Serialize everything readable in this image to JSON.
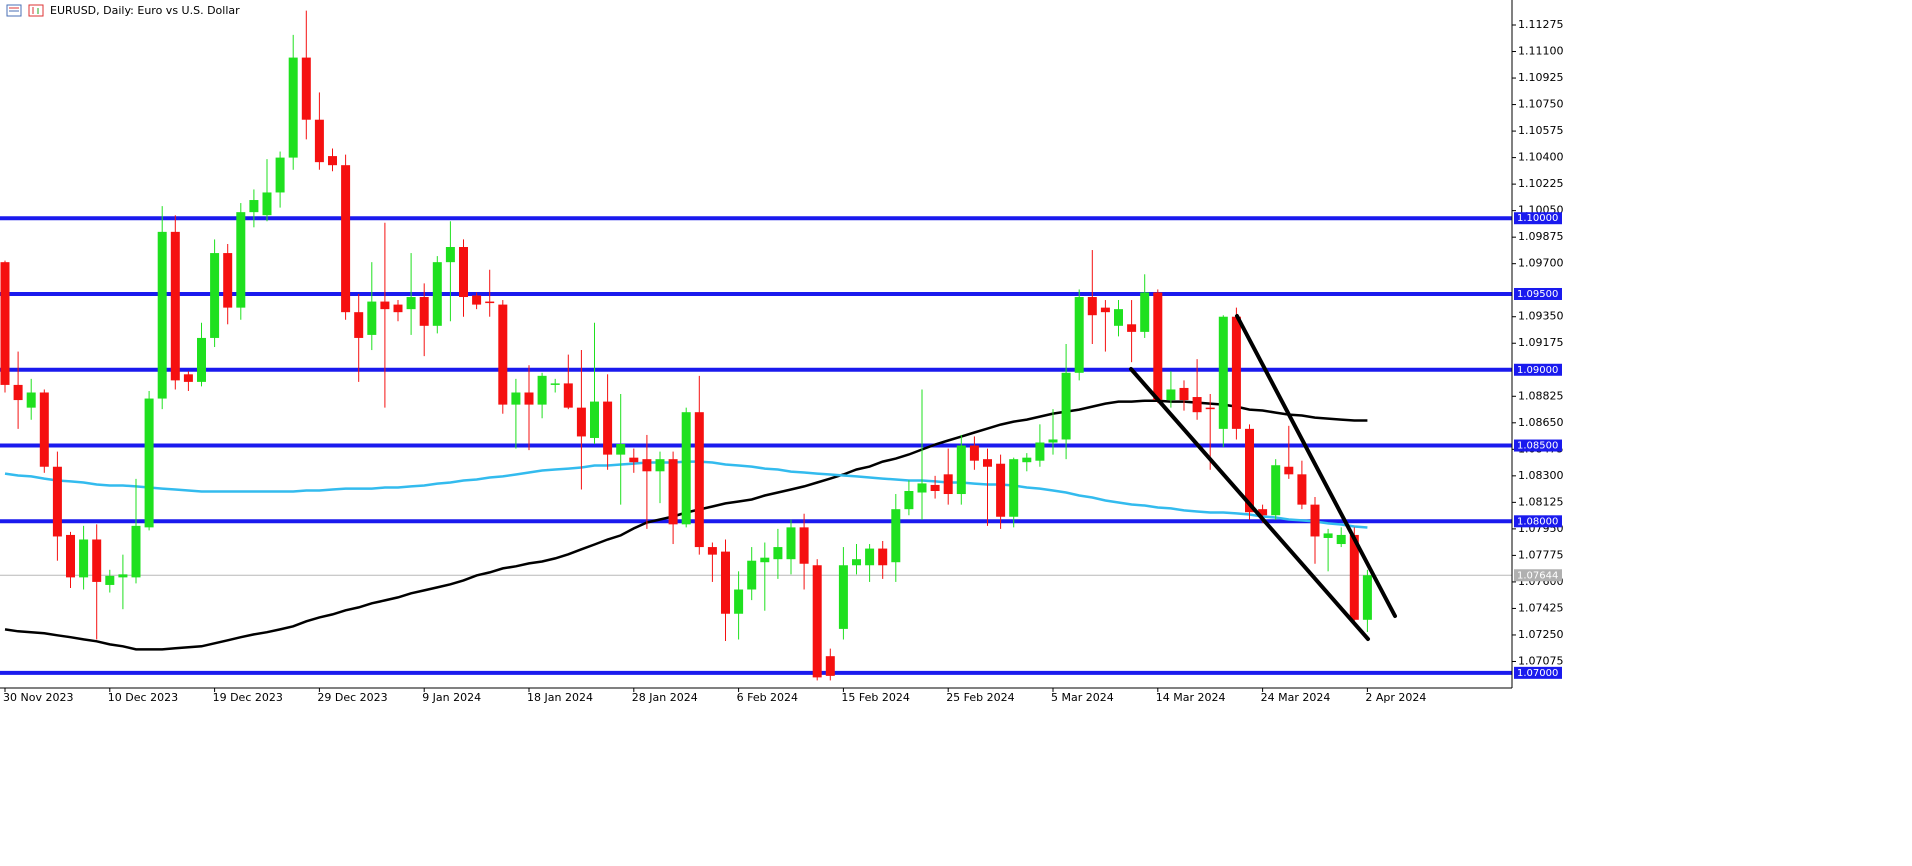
{
  "chart_data": {
    "type": "candlestick",
    "title": "EURUSD, Daily:  Euro vs U.S. Dollar",
    "up_color": "#1fe01f",
    "down_color": "#f51010",
    "ylim": [
      1.069,
      1.1144
    ],
    "yticks": [
      1.11275,
      {
        "value": 1.111,
        "label": "1.11100"
      },
      1.10925,
      {
        "value": 1.1075,
        "label": "1.10750"
      },
      1.10575,
      {
        "value": 1.104,
        "label": "1.10400"
      },
      1.10225,
      {
        "value": 1.1005,
        "label": "1.10050"
      },
      1.09875,
      {
        "value": 1.097,
        "label": "1.09700"
      },
      {
        "value": 1.0935,
        "label": "1.09350"
      },
      1.09175,
      1.08825,
      {
        "value": 1.0865,
        "label": "1.08650"
      },
      1.08475,
      {
        "value": 1.083,
        "label": "1.08300"
      },
      1.08125,
      {
        "value": 1.0795,
        "label": "1.07950"
      },
      1.07775,
      {
        "value": 1.076,
        "label": "1.07600"
      },
      1.07425,
      {
        "value": 1.0725,
        "label": "1.07250"
      },
      1.07075
    ],
    "categories": [
      "30 Nov 2023",
      null,
      null,
      null,
      null,
      null,
      null,
      null,
      "10 Dec 2023",
      null,
      null,
      null,
      null,
      null,
      null,
      null,
      "19 Dec 2023",
      null,
      null,
      null,
      null,
      null,
      null,
      null,
      "29 Dec 2023",
      null,
      null,
      null,
      null,
      null,
      null,
      null,
      "9 Jan 2024",
      null,
      null,
      null,
      null,
      null,
      null,
      null,
      "18 Jan 2024",
      null,
      null,
      null,
      null,
      null,
      null,
      null,
      "28 Jan 2024",
      null,
      null,
      null,
      null,
      null,
      null,
      null,
      "6 Feb 2024",
      null,
      null,
      null,
      null,
      null,
      null,
      null,
      "15 Feb 2024",
      null,
      null,
      null,
      null,
      null,
      null,
      null,
      "25 Feb 2024",
      null,
      null,
      null,
      null,
      null,
      null,
      null,
      "5 Mar 2024",
      null,
      null,
      null,
      null,
      null,
      null,
      null,
      "14 Mar 2024",
      null,
      null,
      null,
      null,
      null,
      null,
      null,
      "24 Mar 2024",
      null,
      null,
      null,
      null,
      null,
      null,
      null,
      "2 Apr 2024"
    ],
    "open": [
      1.0971,
      1.089,
      1.0875,
      1.0885,
      1.0836,
      1.0791,
      1.0763,
      1.0788,
      1.0758,
      1.0763,
      1.0763,
      1.0796,
      1.0881,
      1.0991,
      1.0897,
      1.0892,
      1.0921,
      1.0977,
      1.0941,
      1.1004,
      1.1002,
      1.1017,
      1.104,
      1.1106,
      1.1065,
      1.1041,
      1.1035,
      1.0938,
      1.0923,
      1.0945,
      1.0943,
      1.094,
      1.0948,
      1.0929,
      1.0971,
      1.0981,
      1.0949,
      1.0945,
      1.0943,
      1.0877,
      1.0885,
      1.0877,
      1.089,
      1.0891,
      1.0875,
      1.0855,
      1.0879,
      1.0844,
      1.0842,
      1.0841,
      1.0833,
      1.0841,
      1.0798,
      1.0872,
      1.0783,
      1.078,
      1.0739,
      1.0755,
      1.0773,
      1.0775,
      1.0775,
      1.0796,
      1.0771,
      1.0711,
      1.0729,
      1.0771,
      1.0771,
      1.0782,
      1.0773,
      1.0808,
      1.0819,
      1.0824,
      1.0831,
      1.0818,
      1.085,
      1.0841,
      1.0838,
      1.0803,
      1.0839,
      1.084,
      1.0852,
      1.0854,
      1.0898,
      1.0948,
      1.0941,
      1.0929,
      1.093,
      1.0925,
      1.0951,
      1.088,
      1.0888,
      1.0882,
      1.0875,
      1.0861,
      1.0935,
      1.0861,
      1.0808,
      1.0804,
      1.0836,
      1.0831,
      1.0811,
      1.0789,
      1.0785,
      1.0791,
      1.0735
    ],
    "high": [
      1.0972,
      1.0912,
      1.0894,
      1.0887,
      1.0846,
      1.0793,
      1.0797,
      1.0798,
      1.0768,
      1.0778,
      1.0828,
      1.0886,
      1.1008,
      1.1002,
      1.0899,
      1.0931,
      1.0986,
      1.0983,
      1.101,
      1.1019,
      1.1039,
      1.1044,
      1.1121,
      1.1137,
      1.1083,
      1.1046,
      1.1042,
      1.095,
      1.0971,
      1.0997,
      1.0946,
      1.0977,
      1.0957,
      1.0975,
      1.0998,
      1.0986,
      1.0951,
      1.0966,
      1.0946,
      1.0894,
      1.0903,
      1.0898,
      1.0894,
      1.091,
      1.0913,
      1.0931,
      1.0897,
      1.0884,
      1.0848,
      1.0857,
      1.0846,
      1.0846,
      1.0875,
      1.0896,
      1.0786,
      1.0788,
      1.0767,
      1.0783,
      1.0786,
      1.0795,
      1.0801,
      1.0805,
      1.0775,
      1.0716,
      1.0783,
      1.0785,
      1.0785,
      1.0787,
      1.0818,
      1.0827,
      1.0887,
      1.083,
      1.0848,
      1.0857,
      1.0856,
      1.0848,
      1.0844,
      1.0842,
      1.0845,
      1.0864,
      1.0874,
      1.0917,
      1.0953,
      1.0979,
      1.0946,
      1.0946,
      1.0946,
      1.0963,
      1.0953,
      1.0899,
      1.0893,
      1.0907,
      1.0884,
      1.0936,
      1.0941,
      1.0864,
      1.0811,
      1.0841,
      1.0863,
      1.084,
      1.0816,
      1.0795,
      1.0796,
      1.0796,
      1.0768
    ],
    "low": [
      1.0885,
      1.0861,
      1.0867,
      1.0832,
      1.0774,
      1.0756,
      1.0755,
      1.0722,
      1.0753,
      1.0742,
      1.0759,
      1.0794,
      1.0874,
      1.0887,
      1.0886,
      1.0889,
      1.0915,
      1.093,
      1.0933,
      1.0994,
      1.0998,
      1.1007,
      1.1032,
      1.1052,
      1.1032,
      1.1031,
      1.0933,
      1.0892,
      1.0913,
      1.0875,
      1.0932,
      1.0923,
      1.0909,
      1.0924,
      1.0932,
      1.0935,
      1.094,
      1.0935,
      1.0871,
      1.0848,
      1.0847,
      1.0868,
      1.0885,
      1.0874,
      1.0821,
      1.0851,
      1.0834,
      1.0811,
      1.0832,
      1.0795,
      1.0812,
      1.0785,
      1.0796,
      1.0778,
      1.076,
      1.0721,
      1.0722,
      1.0748,
      1.0741,
      1.0762,
      1.0765,
      1.0755,
      1.0695,
      1.0695,
      1.0722,
      1.0765,
      1.076,
      1.0762,
      1.076,
      1.0804,
      1.0801,
      1.0815,
      1.0811,
      1.0811,
      1.0834,
      1.0797,
      1.0795,
      1.0796,
      1.0833,
      1.0836,
      1.0844,
      1.0841,
      1.0893,
      1.0917,
      1.0912,
      1.0922,
      1.0905,
      1.0921,
      1.0878,
      1.0875,
      1.0873,
      1.0867,
      1.0834,
      1.0849,
      1.0854,
      1.0801,
      1.0799,
      1.0801,
      1.0828,
      1.0808,
      1.0772,
      1.0767,
      1.0783,
      1.0732,
      1.0727
    ],
    "close": [
      1.089,
      1.088,
      1.0885,
      1.0836,
      1.079,
      1.0763,
      1.0788,
      1.076,
      1.0764,
      1.0765,
      1.0797,
      1.0881,
      1.0991,
      1.0893,
      1.0892,
      1.0921,
      1.0977,
      1.0941,
      1.1004,
      1.1012,
      1.1017,
      1.104,
      1.1106,
      1.1065,
      1.1037,
      1.1035,
      1.0938,
      1.0921,
      1.0945,
      1.094,
      1.0938,
      1.0948,
      1.0929,
      1.0971,
      1.0981,
      1.0948,
      1.0943,
      1.0944,
      1.0877,
      1.0885,
      1.0877,
      1.0896,
      1.0891,
      1.0875,
      1.0856,
      1.0879,
      1.0844,
      1.0851,
      1.0839,
      1.0833,
      1.0841,
      1.0798,
      1.0872,
      1.0783,
      1.0778,
      1.0739,
      1.0755,
      1.0774,
      1.0776,
      1.0783,
      1.0796,
      1.0772,
      1.0697,
      1.0698,
      1.0771,
      1.0775,
      1.0782,
      1.0771,
      1.0808,
      1.082,
      1.0825,
      1.082,
      1.0818,
      1.085,
      1.084,
      1.0836,
      1.0803,
      1.0841,
      1.0842,
      1.0852,
      1.0854,
      1.0898,
      1.0948,
      1.0936,
      1.0938,
      1.094,
      1.0925,
      1.0951,
      1.088,
      1.0887,
      1.088,
      1.0872,
      1.0874,
      1.0935,
      1.0861,
      1.0806,
      1.0804,
      1.0837,
      1.0831,
      1.0811,
      1.079,
      1.0792,
      1.0791,
      1.0735,
      1.07644
    ],
    "lines": [
      {
        "color": "#000000",
        "values": [
          1.07287,
          1.07274,
          1.07268,
          1.07261,
          1.07248,
          1.07235,
          1.07221,
          1.07208,
          1.07188,
          1.07175,
          1.07155,
          1.07155,
          1.07155,
          1.07162,
          1.07169,
          1.07175,
          1.07195,
          1.07215,
          1.07235,
          1.07254,
          1.07268,
          1.07287,
          1.07307,
          1.0734,
          1.07366,
          1.07386,
          1.07413,
          1.07432,
          1.07459,
          1.07478,
          1.07498,
          1.07525,
          1.07544,
          1.07564,
          1.07584,
          1.0761,
          1.07643,
          1.07663,
          1.07689,
          1.07703,
          1.07722,
          1.07735,
          1.07755,
          1.07782,
          1.07815,
          1.07847,
          1.0788,
          1.07907,
          1.07953,
          1.07992,
          1.08012,
          1.08032,
          1.08058,
          1.08078,
          1.08098,
          1.08118,
          1.08131,
          1.08144,
          1.0817,
          1.0819,
          1.0821,
          1.0823,
          1.08256,
          1.08282,
          1.08309,
          1.08342,
          1.08361,
          1.08394,
          1.08414,
          1.08441,
          1.08474,
          1.08506,
          1.08533,
          1.08559,
          1.08586,
          1.08612,
          1.08638,
          1.08658,
          1.08671,
          1.08691,
          1.08711,
          1.08724,
          1.08737,
          1.08757,
          1.08777,
          1.0879,
          1.0879,
          1.08796,
          1.08796,
          1.0879,
          1.0879,
          1.08783,
          1.08777,
          1.0877,
          1.08757,
          1.08737,
          1.08731,
          1.08717,
          1.08704,
          1.08698,
          1.08684,
          1.08678,
          1.08671,
          1.08665,
          1.08665
        ]
      },
      {
        "color": "#33bbee",
        "values": [
          1.08315,
          1.08302,
          1.08296,
          1.08282,
          1.08269,
          1.08263,
          1.08256,
          1.08243,
          1.08236,
          1.08236,
          1.0823,
          1.08223,
          1.08216,
          1.0821,
          1.08203,
          1.08197,
          1.08197,
          1.08197,
          1.08197,
          1.08197,
          1.08197,
          1.08197,
          1.08197,
          1.08203,
          1.08203,
          1.0821,
          1.08216,
          1.08216,
          1.08216,
          1.08223,
          1.08223,
          1.0823,
          1.08236,
          1.08249,
          1.08256,
          1.08269,
          1.08276,
          1.08289,
          1.08296,
          1.08309,
          1.08322,
          1.08335,
          1.08342,
          1.08348,
          1.08355,
          1.08368,
          1.08368,
          1.08375,
          1.08381,
          1.08388,
          1.08388,
          1.08388,
          1.08394,
          1.08394,
          1.08388,
          1.08375,
          1.08368,
          1.08361,
          1.08348,
          1.08342,
          1.08328,
          1.08322,
          1.08315,
          1.08309,
          1.08302,
          1.08296,
          1.08289,
          1.08282,
          1.08276,
          1.08269,
          1.08269,
          1.08263,
          1.08256,
          1.08256,
          1.08249,
          1.08243,
          1.08243,
          1.08236,
          1.08223,
          1.08216,
          1.08203,
          1.0819,
          1.0817,
          1.08157,
          1.08137,
          1.08124,
          1.08111,
          1.08104,
          1.08091,
          1.08085,
          1.08072,
          1.08065,
          1.08058,
          1.08058,
          1.08052,
          1.08045,
          1.08032,
          1.08025,
          1.08012,
          1.08006,
          1.07999,
          1.07986,
          1.07979,
          1.07966,
          1.07959
        ]
      }
    ],
    "level_color": "#1a1aee",
    "levels": [
      {
        "value": 1.1,
        "label": "1.10000"
      },
      {
        "value": 1.095,
        "label": "1.09500"
      },
      {
        "value": 1.09,
        "label": "1.09000"
      },
      {
        "value": 1.085,
        "label": "1.08500"
      },
      {
        "value": 1.08,
        "label": "1.08000"
      },
      {
        "value": 1.07,
        "label": "1.07000"
      }
    ],
    "last_price": {
      "value": 1.07644,
      "label": "1.07644"
    }
  }
}
